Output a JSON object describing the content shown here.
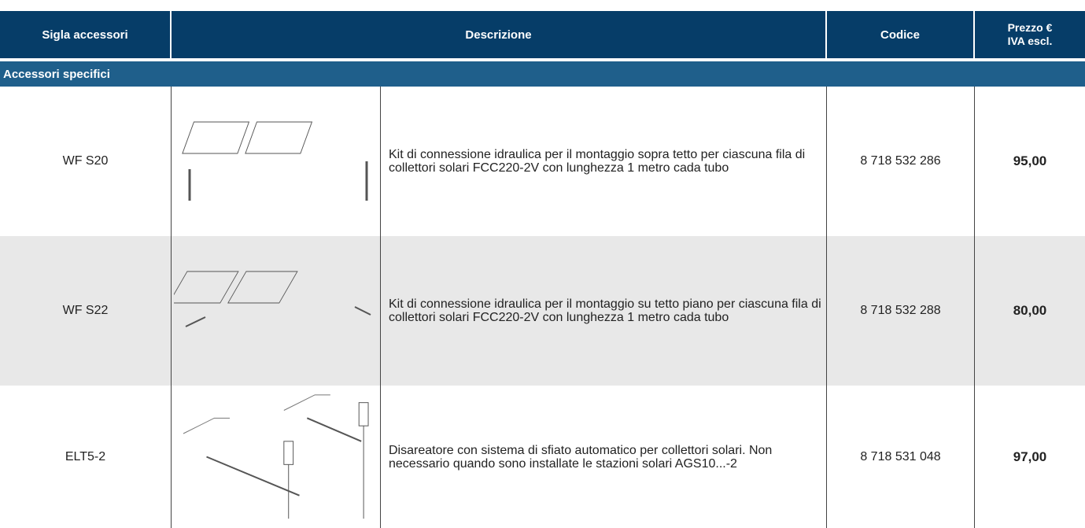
{
  "header": {
    "columns": [
      "Sigla accessori",
      "Descrizione",
      "Codice",
      [
        "Prezzo €",
        "IVA escl."
      ]
    ]
  },
  "section": {
    "title": "Accessori specifici"
  },
  "table": {
    "rows": [
      [
        "WF S20",
        "Kit di connessione idraulica per il montaggio sopra tetto per ciascuna fila di collettori solari FCC220-2V con lunghezza 1 metro cada tubo",
        "8 718 532 286",
        "95,00"
      ],
      [
        "WF S22",
        "Kit di connessione idraulica per il montaggio su tetto piano per ciascuna fila di collettori solari FCC220-2V con lunghezza 1 metro cada tubo",
        "8 718 532 288",
        "80,00"
      ],
      [
        "ELT5-2",
        "Disareatore con sistema di sfiato automatico per collettori solari. Non necessario quando sono installate le stazioni solari AGS10...-2",
        "8 718 531 048",
        "97,00"
      ]
    ]
  }
}
